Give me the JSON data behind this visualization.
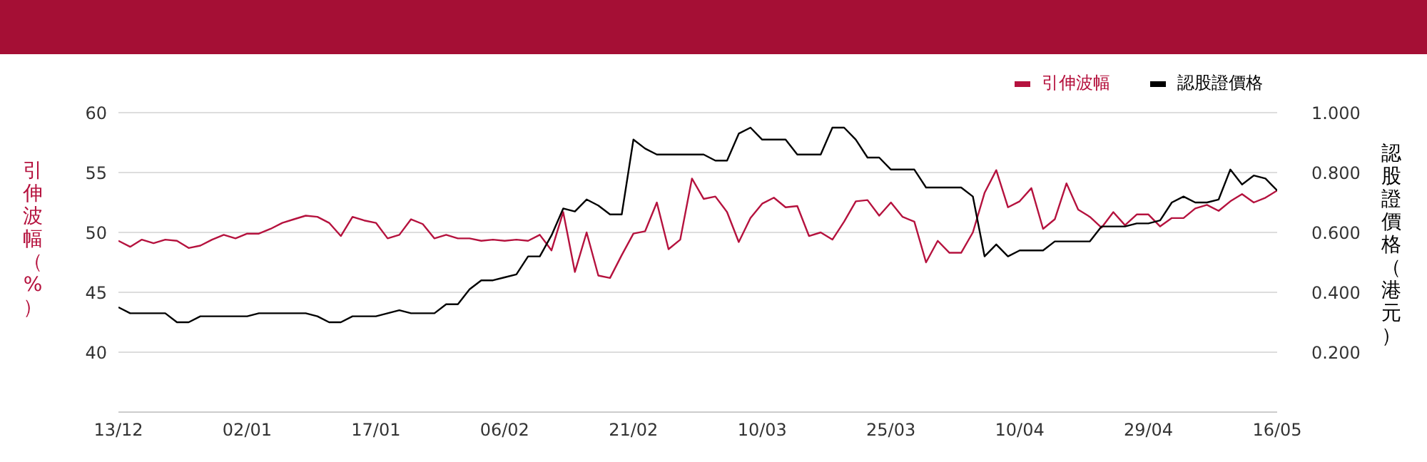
{
  "chart_data": {
    "type": "line",
    "ylabel": "引伸波幅（%）",
    "y2label": "認股證價格（港元）",
    "categories": [
      "13/12",
      null,
      null,
      null,
      null,
      null,
      null,
      null,
      null,
      null,
      null,
      "02/01",
      null,
      null,
      null,
      null,
      null,
      null,
      null,
      null,
      null,
      null,
      "17/01",
      null,
      null,
      null,
      null,
      null,
      null,
      null,
      null,
      null,
      null,
      "06/02",
      null,
      null,
      null,
      null,
      null,
      null,
      null,
      null,
      null,
      null,
      "21/02",
      null,
      null,
      null,
      null,
      null,
      null,
      null,
      null,
      null,
      null,
      "10/03",
      null,
      null,
      null,
      null,
      null,
      null,
      null,
      null,
      null,
      null,
      "25/03",
      null,
      null,
      null,
      null,
      null,
      null,
      null,
      null,
      null,
      null,
      "10/04",
      null,
      null,
      null,
      null,
      null,
      null,
      null,
      null,
      null,
      null,
      "29/04",
      null,
      null,
      null,
      null,
      null,
      null,
      null,
      null,
      null,
      null,
      "16/05"
    ],
    "series": [
      {
        "name": "引伸波幅",
        "color": "#b5123e",
        "values": [
          49.3,
          48.8,
          49.4,
          49.1,
          49.4,
          49.3,
          48.7,
          48.9,
          49.4,
          49.8,
          49.5,
          49.9,
          49.9,
          50.3,
          50.8,
          51.1,
          51.4,
          51.3,
          50.8,
          49.7,
          51.3,
          51.0,
          50.8,
          49.5,
          49.8,
          51.1,
          50.7,
          49.5,
          49.8,
          49.5,
          49.5,
          49.3,
          49.4,
          49.3,
          49.4,
          49.3,
          49.8,
          48.5,
          51.7,
          46.7,
          50.0,
          46.4,
          46.2,
          48.1,
          49.9,
          50.1,
          52.5,
          48.6,
          49.4,
          54.5,
          52.8,
          53.0,
          51.7,
          49.2,
          51.2,
          52.4,
          52.9,
          52.1,
          52.2,
          49.7,
          50.0,
          49.4,
          50.9,
          52.6,
          52.7,
          51.4,
          52.5,
          51.3,
          50.9,
          47.5,
          49.3,
          48.3,
          48.3,
          50.0,
          53.3,
          55.2,
          52.1,
          52.6,
          53.7,
          50.3,
          51.1,
          54.1,
          51.9,
          51.3,
          50.4,
          51.7,
          50.6,
          51.5,
          51.5,
          50.5,
          51.2,
          51.2,
          52.0,
          52.3,
          51.8,
          52.6,
          53.2,
          52.5,
          52.9,
          53.5
        ]
      },
      {
        "name": "認股證價格",
        "color": "#000000",
        "axis": "y2",
        "values": [
          0.35,
          0.33,
          0.33,
          0.33,
          0.33,
          0.3,
          0.3,
          0.32,
          0.32,
          0.32,
          0.32,
          0.32,
          0.33,
          0.33,
          0.33,
          0.33,
          0.33,
          0.32,
          0.3,
          0.3,
          0.32,
          0.32,
          0.32,
          0.33,
          0.34,
          0.33,
          0.33,
          0.33,
          0.36,
          0.36,
          0.41,
          0.44,
          0.44,
          0.45,
          0.46,
          0.52,
          0.52,
          0.59,
          0.68,
          0.67,
          0.71,
          0.69,
          0.66,
          0.66,
          0.91,
          0.88,
          0.86,
          0.86,
          0.86,
          0.86,
          0.86,
          0.84,
          0.84,
          0.93,
          0.95,
          0.91,
          0.91,
          0.91,
          0.86,
          0.86,
          0.86,
          0.95,
          0.95,
          0.91,
          0.85,
          0.85,
          0.81,
          0.81,
          0.81,
          0.75,
          0.75,
          0.75,
          0.75,
          0.72,
          0.52,
          0.56,
          0.52,
          0.54,
          0.54,
          0.54,
          0.57,
          0.57,
          0.57,
          0.57,
          0.62,
          0.62,
          0.62,
          0.63,
          0.63,
          0.64,
          0.7,
          0.72,
          0.7,
          0.7,
          0.71,
          0.81,
          0.76,
          0.79,
          0.78,
          0.74
        ]
      }
    ],
    "ylim": [
      35,
      60
    ],
    "yticks": [
      40,
      45,
      50,
      55,
      60
    ],
    "y2lim": [
      0,
      1
    ],
    "y2ticks": [
      {
        "value": 0.2,
        "label": "0.200"
      },
      {
        "value": 0.4,
        "label": "0.400"
      },
      {
        "value": 0.6,
        "label": "0.600"
      },
      {
        "value": 0.8,
        "label": "0.800"
      },
      {
        "value": 1,
        "label": "1.000"
      }
    ],
    "grid": "y",
    "legend": "top right",
    "marker": "none",
    "line_style": "solid"
  }
}
